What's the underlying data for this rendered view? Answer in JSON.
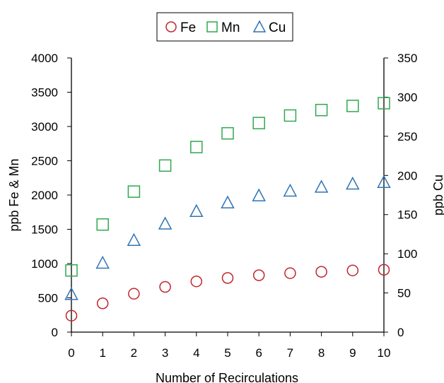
{
  "chart_data": {
    "type": "scatter",
    "x": [
      0,
      1,
      2,
      3,
      4,
      5,
      6,
      7,
      8,
      9,
      10
    ],
    "xlabel": "Number of Recirculations",
    "ylabel_left": "ppb Fe & Mn",
    "ylabel_right": "ppb Cu",
    "xlim": [
      0,
      10
    ],
    "ylim_left": [
      0,
      4000
    ],
    "ylim_right": [
      0,
      350
    ],
    "x_ticks": [
      "0",
      "1",
      "2",
      "3",
      "4",
      "5",
      "6",
      "7",
      "8",
      "9",
      "10"
    ],
    "y_ticks_left": [
      "0",
      "500",
      "1000",
      "1500",
      "2000",
      "2500",
      "3000",
      "3500",
      "4000"
    ],
    "y_ticks_right": [
      "0",
      "50",
      "100",
      "150",
      "200",
      "250",
      "300",
      "350"
    ],
    "grid": false,
    "legend_position": "top-center",
    "series": [
      {
        "name": "Fe",
        "axis": "left",
        "marker": "circle",
        "color": "#c0262b",
        "values": [
          240,
          420,
          560,
          660,
          740,
          790,
          830,
          860,
          880,
          900,
          910
        ]
      },
      {
        "name": "Mn",
        "axis": "left",
        "marker": "square",
        "color": "#2fa84f",
        "values": [
          900,
          1570,
          2050,
          2430,
          2700,
          2900,
          3050,
          3160,
          3240,
          3300,
          3340
        ]
      },
      {
        "name": "Cu",
        "axis": "right",
        "marker": "triangle",
        "color": "#2e74b5",
        "values": [
          48,
          88,
          117,
          138,
          154,
          165,
          174,
          180,
          185,
          189,
          191
        ]
      }
    ]
  }
}
